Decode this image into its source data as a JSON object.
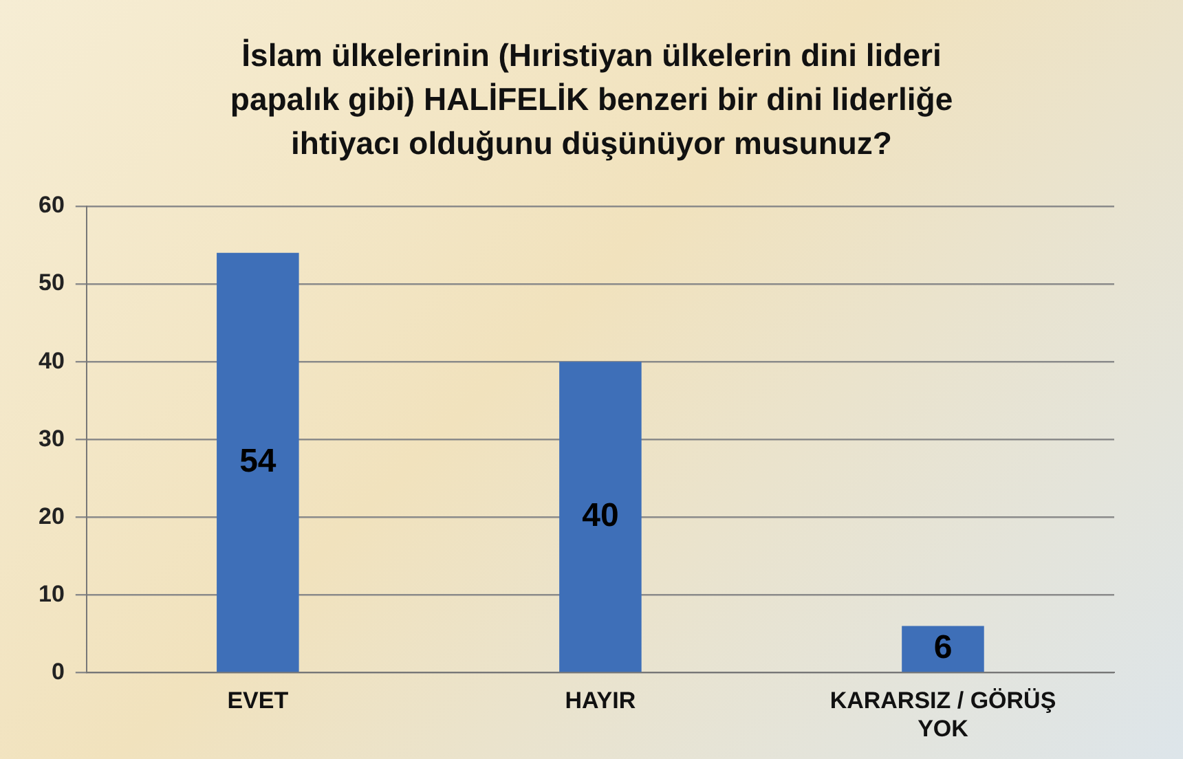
{
  "chart_data": {
    "type": "bar",
    "title": "İslam ülkelerinin (Hıristiyan ülkelerin dini lideri papalık gibi) HALİFELİK benzeri bir dini liderliğe ihtiyacı olduğunu düşünüyor musunuz?",
    "categories": [
      "EVET",
      "HAYIR",
      "KARARSIZ / GÖRÜŞ YOK"
    ],
    "values": [
      54,
      40,
      6
    ],
    "color": "#3e6fb8",
    "ylim": [
      0,
      60
    ],
    "yticks": [
      0,
      10,
      20,
      30,
      40,
      50,
      60
    ],
    "grid": "y",
    "legend": false,
    "data_labels": true
  }
}
